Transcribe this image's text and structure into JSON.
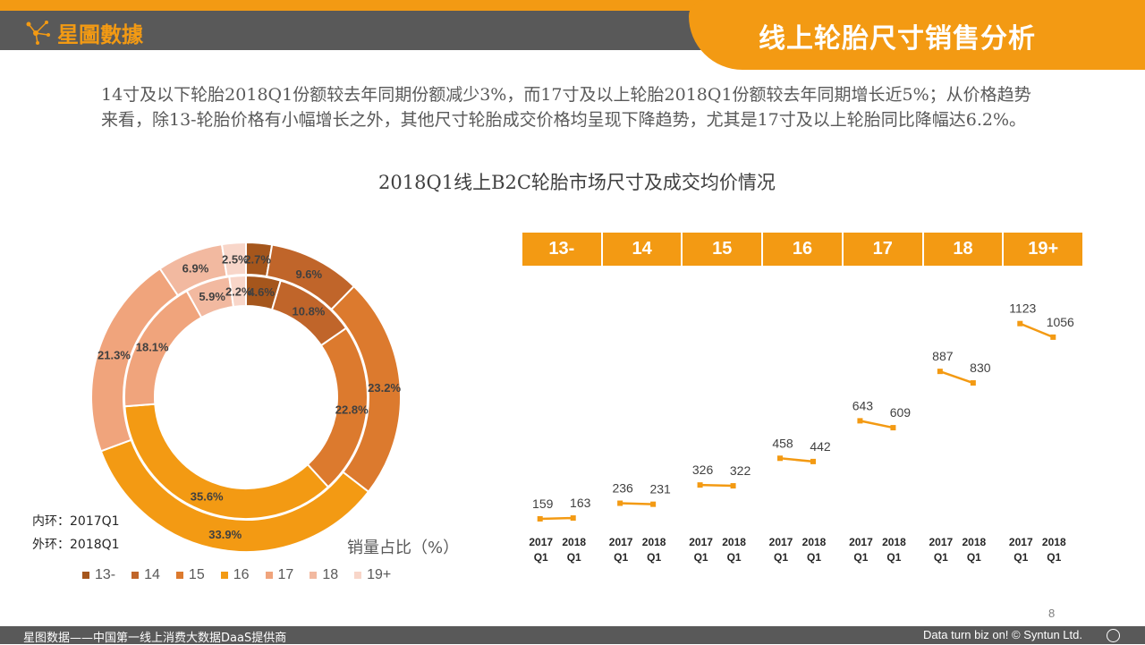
{
  "header": {
    "brand": "星圖數據",
    "title": "线上轮胎尺寸销售分析"
  },
  "description": "14寸及以下轮胎2018Q1份额较去年同期份额减少3%，而17寸及以上轮胎2018Q1份额较去年同期增长近5%；从价格趋势来看，除13-轮胎价格有小幅增长之外，其他尺寸轮胎成交价格均呈现下降趋势，尤其是17寸及以上轮胎同比降幅达6.2%。",
  "chart_title": "2018Q1线上B2C轮胎市场尺寸及成交均价情况",
  "colors": {
    "accent": "#f39a13",
    "dark_gray": "#595959",
    "segments": [
      "#a5561c",
      "#c0652a",
      "#dc7a2e",
      "#f39a13",
      "#f0a47c",
      "#f2b9a0",
      "#f8d6c9"
    ]
  },
  "chart_data": [
    {
      "type": "pie",
      "variant": "donut-two-rings",
      "categories": [
        "13-",
        "14",
        "15",
        "16",
        "17",
        "18",
        "19+"
      ],
      "series": [
        {
          "name": "内环：2017Q1",
          "values": [
            4.6,
            10.8,
            22.8,
            35.6,
            18.1,
            5.9,
            2.2
          ]
        },
        {
          "name": "外环：2018Q1",
          "values": [
            2.7,
            9.6,
            23.2,
            33.9,
            21.3,
            6.9,
            2.5
          ]
        }
      ],
      "value_labels": {
        "inner": [
          "4.6%",
          "10.8%",
          "22.8%",
          "35.6%",
          "18.1%",
          "5.9%",
          "2.2%"
        ],
        "outer": [
          "2.7%",
          "9.6%",
          "23.2%",
          "33.9%",
          "21.3%",
          "6.9%",
          "2.5%"
        ]
      },
      "ring_notes": {
        "inner": "内环：2017Q1",
        "outer": "外环：2018Q1"
      },
      "caption": "销量占比（%）",
      "legend_position": "bottom"
    },
    {
      "type": "line",
      "categories": [
        "13-",
        "14",
        "15",
        "16",
        "17",
        "18",
        "19+"
      ],
      "x_labels": [
        "2017 Q1",
        "2018 Q1"
      ],
      "series": [
        {
          "values_2017": [
            159,
            236,
            326,
            458,
            643,
            887,
            1123
          ],
          "values_2018": [
            163,
            231,
            322,
            442,
            609,
            830,
            1056
          ]
        }
      ],
      "ylim": [
        0,
        1200
      ],
      "grid": false
    }
  ],
  "footer": {
    "left": "星图数据——中国第一线上消费大数据DaaS提供商",
    "right": "Data turn biz on! © Syntun Ltd.",
    "page": "8"
  }
}
